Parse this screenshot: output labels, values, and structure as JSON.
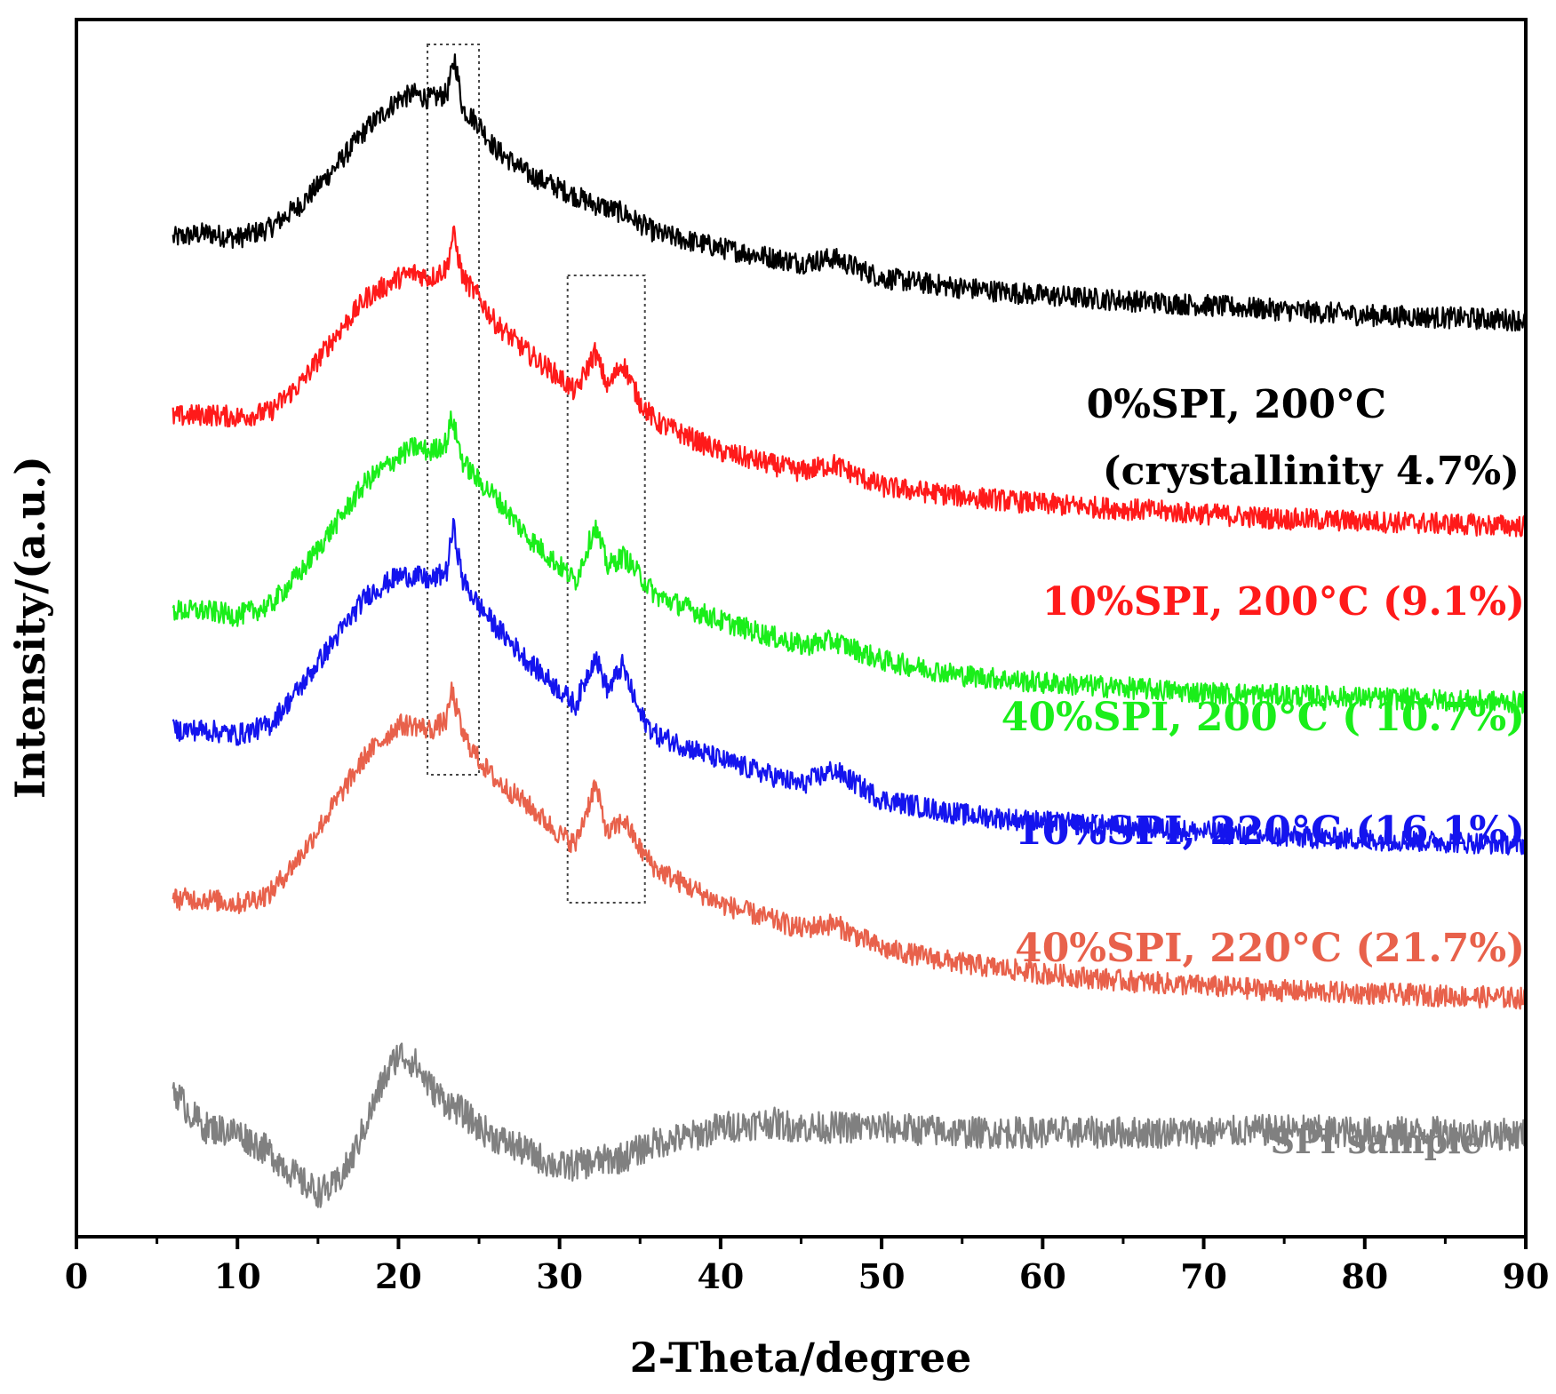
{
  "chart_data": {
    "type": "line",
    "title": "",
    "xlabel": "2-Theta/degree",
    "ylabel": "Intensity/(a.u.)",
    "xlim": [
      0,
      90
    ],
    "x_ticks": [
      "0",
      "10",
      "20",
      "30",
      "40",
      "50",
      "60",
      "70",
      "80",
      "90"
    ],
    "y_ticks_shown": false,
    "grid": false,
    "highlight_regions": [
      {
        "x_range": [
          21.8,
          25.0
        ],
        "note": "dashed box around ~23.4 deg peak"
      },
      {
        "x_range": [
          30.5,
          35.3
        ],
        "note": "dashed box around ~32-34 deg peaks"
      }
    ],
    "series": [
      {
        "name": "0%SPI, 200°C",
        "label_lines": [
          "0%SPI, 200°C",
          "(crystallinity 4.7%)"
        ],
        "color": "#000000",
        "x": [
          6,
          8,
          10,
          12,
          14,
          16,
          18,
          20,
          21,
          22,
          23,
          23.5,
          24,
          25,
          26,
          28,
          30,
          32,
          34,
          36,
          40,
          45,
          47,
          50,
          55,
          60,
          65,
          70,
          75,
          80,
          85,
          90
        ],
        "y": [
          3.6,
          3.7,
          3.6,
          3.8,
          4.3,
          5.0,
          5.8,
          6.4,
          6.5,
          6.4,
          6.5,
          7.2,
          6.2,
          5.9,
          5.4,
          4.9,
          4.6,
          4.3,
          4.1,
          3.7,
          3.4,
          3.1,
          3.2,
          2.8,
          2.6,
          2.45,
          2.35,
          2.25,
          2.15,
          2.05,
          2.0,
          1.95
        ]
      },
      {
        "name": "10%SPI, 200°C",
        "label_lines": [
          "10%SPI, 200°C (9.1%)"
        ],
        "color": "#ff1a1a",
        "x": [
          6,
          8,
          10,
          12,
          14,
          16,
          18,
          20,
          21,
          22,
          23,
          23.4,
          24,
          25,
          26,
          28,
          30,
          31,
          32.2,
          33,
          33.9,
          35,
          36,
          40,
          45,
          47,
          50,
          55,
          60,
          65,
          70,
          75,
          80,
          85,
          90
        ],
        "y": [
          0.0,
          0.05,
          0.0,
          0.1,
          0.7,
          1.6,
          2.4,
          2.8,
          2.9,
          2.8,
          3.0,
          3.7,
          2.8,
          2.4,
          1.9,
          1.3,
          0.8,
          0.5,
          1.3,
          0.6,
          1.1,
          0.3,
          -0.1,
          -0.7,
          -1.1,
          -0.95,
          -1.4,
          -1.6,
          -1.75,
          -1.85,
          -1.95,
          -2.05,
          -2.1,
          -2.15,
          -2.2
        ]
      },
      {
        "name": "40%SPI, 200°C",
        "label_lines": [
          "40%SPI, 200°C ( 10.7%)"
        ],
        "color": "#1aee1a",
        "x": [
          6,
          8,
          10,
          12,
          14,
          16,
          18,
          20,
          21,
          22,
          23,
          23.3,
          24,
          25,
          26,
          28,
          30,
          31,
          32.2,
          33,
          34,
          35,
          36,
          40,
          45,
          47,
          50,
          55,
          60,
          65,
          70,
          75,
          80,
          85,
          90
        ],
        "y": [
          -3.9,
          -3.9,
          -4.0,
          -3.8,
          -3.1,
          -2.2,
          -1.3,
          -0.8,
          -0.6,
          -0.7,
          -0.5,
          0.0,
          -0.9,
          -1.3,
          -1.6,
          -2.4,
          -3.0,
          -3.3,
          -2.2,
          -3.0,
          -2.8,
          -3.2,
          -3.6,
          -4.1,
          -4.6,
          -4.5,
          -4.9,
          -5.2,
          -5.35,
          -5.45,
          -5.55,
          -5.6,
          -5.65,
          -5.7,
          -5.75
        ]
      },
      {
        "name": "10%SPI, 220°C",
        "label_lines": [
          "10%SPI, 220°C (16.1%)"
        ],
        "color": "#1414ee",
        "x": [
          6,
          8,
          10,
          12,
          14,
          16,
          18,
          20,
          21,
          22,
          23,
          23.4,
          24,
          25,
          26,
          28,
          30,
          31,
          32.2,
          33,
          33.9,
          35,
          36,
          40,
          45,
          47,
          50,
          55,
          60,
          65,
          70,
          75,
          80,
          85,
          90
        ],
        "y": [
          -6.3,
          -6.3,
          -6.4,
          -6.2,
          -5.4,
          -4.5,
          -3.6,
          -3.2,
          -3.2,
          -3.3,
          -3.1,
          -2.2,
          -3.3,
          -3.8,
          -4.2,
          -4.9,
          -5.5,
          -5.8,
          -4.8,
          -5.5,
          -5.0,
          -6.0,
          -6.4,
          -6.9,
          -7.4,
          -7.1,
          -7.7,
          -8.0,
          -8.15,
          -8.25,
          -8.35,
          -8.45,
          -8.5,
          -8.55,
          -8.6
        ]
      },
      {
        "name": "40%SPI, 220°C",
        "label_lines": [
          "40%SPI, 220°C (21.7%)"
        ],
        "color": "#e8614b",
        "x": [
          6,
          8,
          10,
          12,
          14,
          16,
          18,
          20,
          21,
          22,
          23,
          23.3,
          24,
          25,
          26,
          28,
          30,
          31,
          32.2,
          33,
          34,
          35,
          36,
          40,
          45,
          47,
          50,
          55,
          60,
          65,
          70,
          75,
          80,
          85,
          90
        ],
        "y": [
          -9.7,
          -9.7,
          -9.8,
          -9.6,
          -8.8,
          -7.8,
          -6.8,
          -6.2,
          -6.2,
          -6.3,
          -6.1,
          -5.5,
          -6.4,
          -6.9,
          -7.3,
          -7.8,
          -8.4,
          -8.6,
          -7.4,
          -8.4,
          -8.1,
          -8.7,
          -9.1,
          -9.8,
          -10.3,
          -10.2,
          -10.7,
          -11.0,
          -11.2,
          -11.35,
          -11.45,
          -11.55,
          -11.6,
          -11.65,
          -11.7
        ]
      },
      {
        "name": "SPI sample",
        "label_lines": [
          "SPI sample"
        ],
        "color": "#808080",
        "x": [
          6,
          7,
          8,
          10,
          12,
          14,
          15,
          16,
          17,
          18,
          19,
          20,
          21,
          22,
          23,
          24,
          25,
          26,
          28,
          30,
          32,
          34,
          36,
          38,
          40,
          43,
          45,
          50,
          55,
          60,
          65,
          70,
          75,
          80,
          85,
          90
        ],
        "y": [
          -13.5,
          -14.0,
          -14.3,
          -14.4,
          -14.8,
          -15.4,
          -15.6,
          -15.5,
          -15.0,
          -14.2,
          -13.4,
          -12.8,
          -13.0,
          -13.5,
          -13.8,
          -14.0,
          -14.3,
          -14.5,
          -14.8,
          -15.1,
          -15.0,
          -14.9,
          -14.6,
          -14.5,
          -14.3,
          -14.2,
          -14.3,
          -14.3,
          -14.4,
          -14.4,
          -14.4,
          -14.4,
          -14.35,
          -14.4,
          -14.4,
          -14.45
        ]
      }
    ]
  }
}
